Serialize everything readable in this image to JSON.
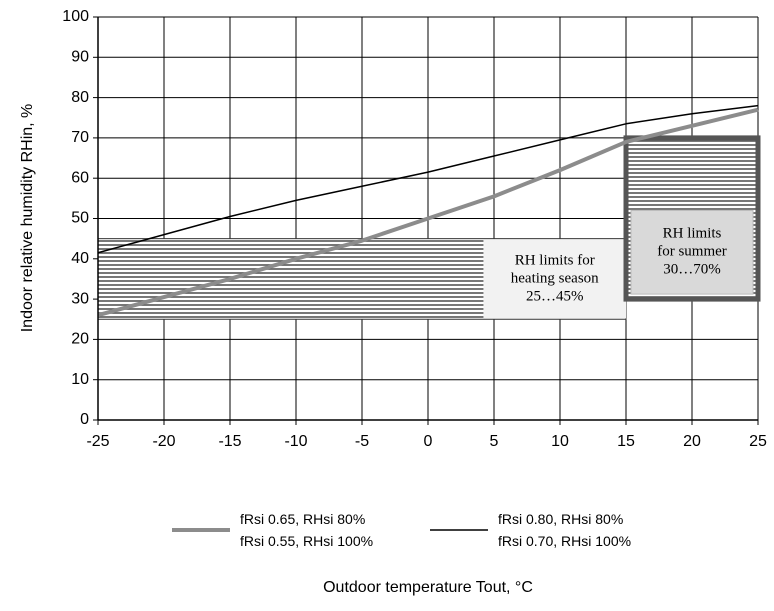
{
  "chart_data": {
    "type": "line",
    "x_label": "Outdoor temperature Tout, °C",
    "y_label": "Indoor relative humidity RHin, %",
    "x": [
      -25,
      -20,
      -15,
      -10,
      -5,
      0,
      5,
      10,
      15,
      20,
      25
    ],
    "series": [
      {
        "name": "fRsi 0.65, RHsi 80%\nfRsi 0.55, RHsi 100%",
        "color": "#8c8c8c",
        "width": 4,
        "values": [
          26,
          30.5,
          35,
          40,
          44.5,
          50,
          55.5,
          62,
          69,
          73,
          77
        ]
      },
      {
        "name": "fRsi 0.80, RHsi 80%\nfRsi 0.70, RHsi 100%",
        "color": "#000000",
        "width": 1.5,
        "values": [
          41.5,
          46,
          50.5,
          54.5,
          58,
          61.5,
          65.5,
          69.5,
          73.5,
          76,
          78
        ]
      }
    ],
    "bands": [
      {
        "xlim": [
          -25,
          15
        ],
        "ylim": [
          25,
          45
        ],
        "label": [
          "RH limits for",
          "heating season",
          "25…45%"
        ]
      },
      {
        "xlim": [
          15,
          25
        ],
        "ylim": [
          30,
          70
        ],
        "label": [
          "RH limits",
          "for summer",
          "30…70%"
        ]
      }
    ],
    "xlim": [
      -25,
      25
    ],
    "xticks": [
      -25,
      -20,
      -15,
      -10,
      -5,
      0,
      5,
      10,
      15,
      20,
      25
    ],
    "ylim": [
      0,
      100
    ],
    "yticks": [
      0,
      10,
      20,
      30,
      40,
      50,
      60,
      70,
      80,
      90,
      100
    ],
    "grid": true
  }
}
